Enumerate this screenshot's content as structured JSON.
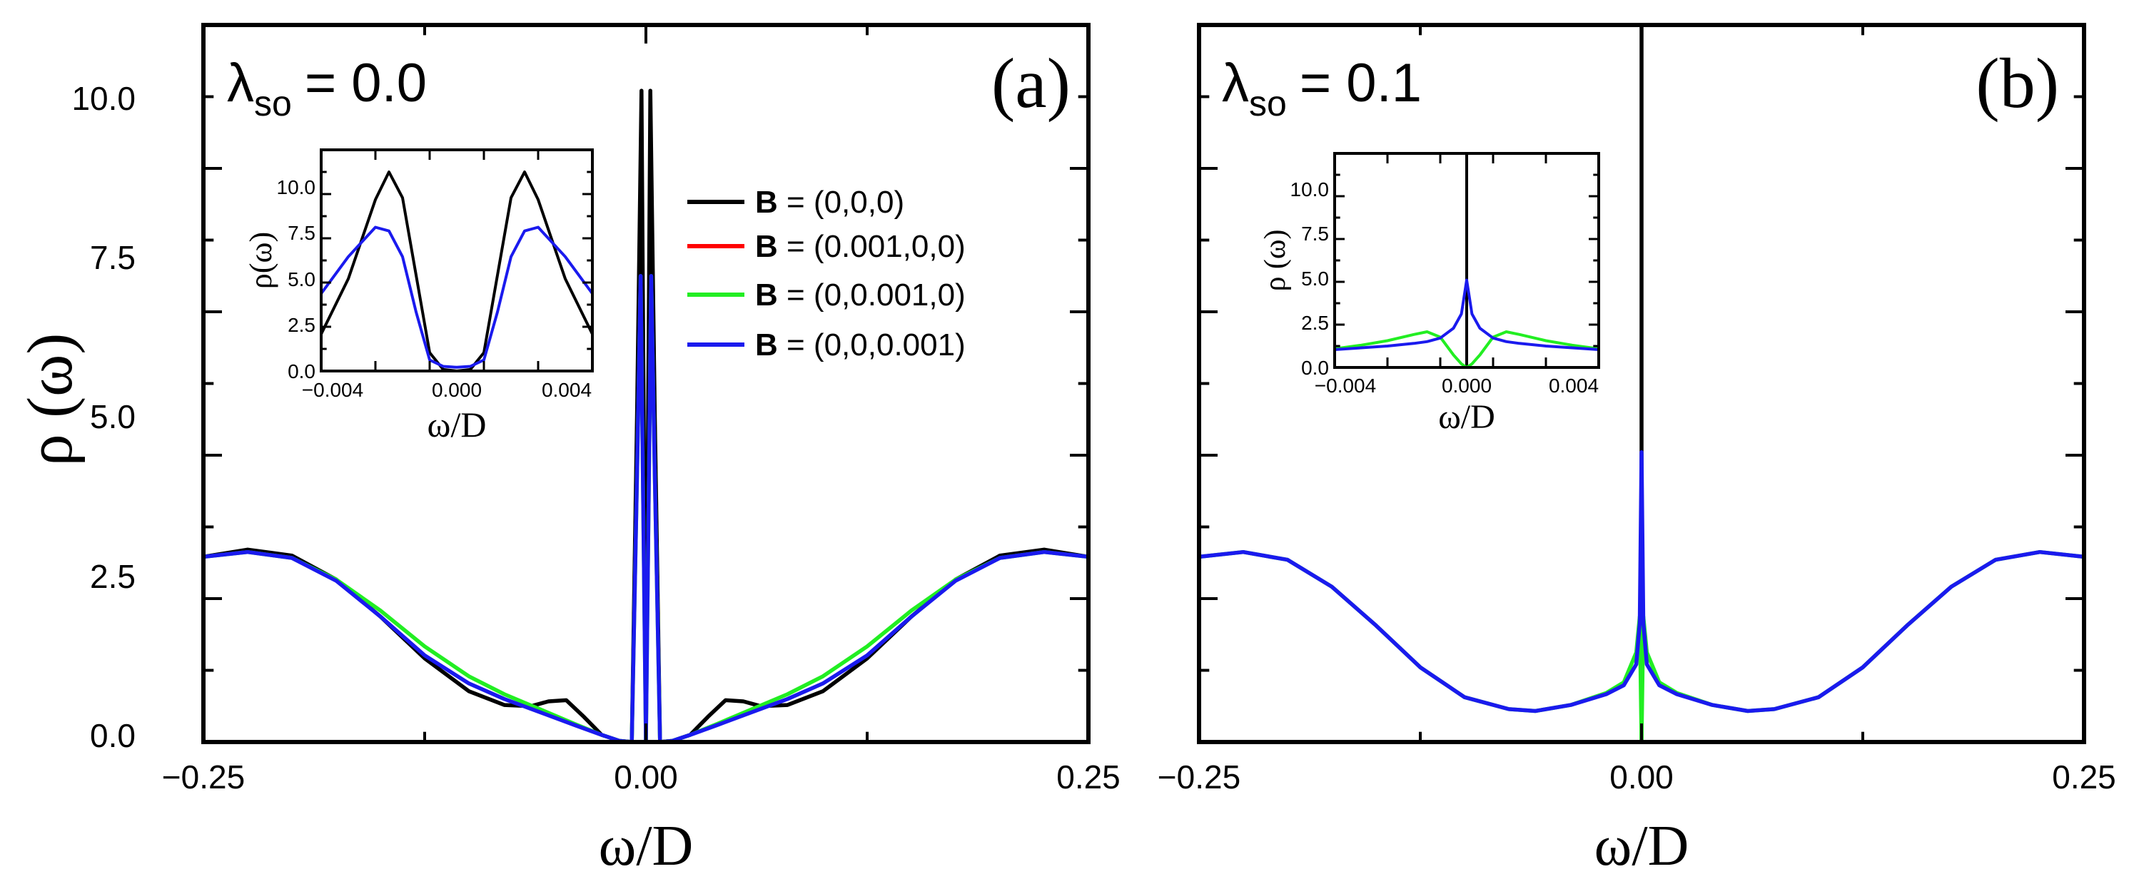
{
  "chart_data": [
    {
      "type": "line",
      "panel_label": "(a)",
      "annotation": {
        "main": "λ",
        "sub": "so",
        "rest": "= 0.0"
      },
      "xlabel": "ω/D",
      "ylabel": "ρ (ω)",
      "xlim": [
        -0.25,
        0.25
      ],
      "ylim": [
        0,
        12
      ],
      "xticks": [
        "−0.25",
        "0.00",
        "0.25"
      ],
      "yticks": [
        "0.0",
        "2.5",
        "5.0",
        "7.5",
        "10.0"
      ],
      "legend": {
        "placement": "top-right",
        "entries": [
          {
            "bold": "B",
            "rest": " = (0,0,0)",
            "color": "#000000"
          },
          {
            "bold": "B",
            "rest": " = (0.001,0,0)",
            "color": "#ff0000"
          },
          {
            "bold": "B",
            "rest": " = (0,0.001,0)",
            "color": "#22ee22"
          },
          {
            "bold": "B",
            "rest": " = (0,0,0.001)",
            "color": "#1a1aee"
          }
        ]
      },
      "series": [
        {
          "color": "#000000",
          "x": [
            -0.25,
            -0.225,
            -0.2,
            -0.175,
            -0.15,
            -0.125,
            -0.1,
            -0.08,
            -0.065,
            -0.055,
            -0.045,
            -0.035,
            -0.025,
            -0.015,
            -0.008,
            -0.005,
            -0.0025,
            0,
            0.0025,
            0.005,
            0.008,
            0.015,
            0.025,
            0.035,
            0.045,
            0.055,
            0.065,
            0.08,
            0.1,
            0.125,
            0.15,
            0.175,
            0.2,
            0.225,
            0.25
          ],
          "y": [
            3.1,
            3.22,
            3.12,
            2.72,
            2.1,
            1.4,
            0.85,
            0.62,
            0.6,
            0.68,
            0.7,
            0.42,
            0.12,
            0.02,
            0.0,
            5.5,
            10.9,
            0.0,
            10.9,
            5.5,
            0.0,
            0.02,
            0.12,
            0.42,
            0.7,
            0.68,
            0.6,
            0.62,
            0.85,
            1.4,
            2.1,
            2.72,
            3.12,
            3.22,
            3.1
          ]
        },
        {
          "color": "#22ee22",
          "x": [
            -0.25,
            -0.225,
            -0.2,
            -0.175,
            -0.15,
            -0.125,
            -0.1,
            -0.08,
            -0.06,
            -0.04,
            -0.025,
            -0.015,
            -0.008,
            -0.005,
            -0.003,
            0,
            0.003,
            0.005,
            0.008,
            0.015,
            0.025,
            0.04,
            0.06,
            0.08,
            0.1,
            0.125,
            0.15,
            0.175,
            0.2,
            0.225,
            0.25
          ],
          "y": [
            3.1,
            3.18,
            3.08,
            2.72,
            2.2,
            1.6,
            1.1,
            0.8,
            0.55,
            0.3,
            0.12,
            0.02,
            0.0,
            4.5,
            7.8,
            0.0,
            7.8,
            4.5,
            0.0,
            0.02,
            0.12,
            0.3,
            0.55,
            0.8,
            1.1,
            1.6,
            2.2,
            2.72,
            3.08,
            3.18,
            3.1
          ]
        },
        {
          "color": "#1a1aee",
          "x": [
            -0.25,
            -0.225,
            -0.2,
            -0.175,
            -0.15,
            -0.125,
            -0.1,
            -0.08,
            -0.06,
            -0.04,
            -0.025,
            -0.015,
            -0.008,
            -0.005,
            -0.003,
            0,
            0.003,
            0.005,
            0.008,
            0.015,
            0.025,
            0.04,
            0.06,
            0.08,
            0.1,
            0.125,
            0.15,
            0.175,
            0.2,
            0.225,
            0.25
          ],
          "y": [
            3.1,
            3.18,
            3.08,
            2.7,
            2.1,
            1.45,
            0.98,
            0.72,
            0.5,
            0.28,
            0.12,
            0.02,
            0.0,
            4.5,
            7.8,
            0.0,
            7.8,
            4.5,
            0.0,
            0.02,
            0.12,
            0.28,
            0.5,
            0.72,
            0.98,
            1.45,
            2.1,
            2.7,
            3.08,
            3.18,
            3.1
          ]
        }
      ],
      "inset": {
        "xlabel": "ω/D",
        "ylabel": "ρ(ω)",
        "xlim": [
          -0.005,
          0.005
        ],
        "ylim": [
          0,
          12
        ],
        "xticks": [
          "−0.004",
          "0.000",
          "0.004"
        ],
        "yticks": [
          "0.0",
          "2.5",
          "5.0",
          "7.5",
          "10.0"
        ],
        "series": [
          {
            "color": "#000000",
            "x": [
              -0.005,
              -0.004,
              -0.003,
              -0.0025,
              -0.002,
              -0.0015,
              -0.001,
              -0.0005,
              0,
              0.0005,
              0.001,
              0.0015,
              0.002,
              0.0025,
              0.003,
              0.004,
              0.005
            ],
            "y": [
              2.0,
              5.0,
              9.3,
              10.8,
              9.4,
              5.2,
              1.0,
              0.08,
              0.0,
              0.08,
              1.0,
              5.2,
              9.4,
              10.8,
              9.3,
              5.0,
              2.0
            ]
          },
          {
            "color": "#1a1aee",
            "x": [
              -0.005,
              -0.004,
              -0.003,
              -0.0025,
              -0.002,
              -0.0015,
              -0.001,
              -0.0005,
              0,
              0.0005,
              0.001,
              0.0015,
              0.002,
              0.0025,
              0.003,
              0.004,
              0.005
            ],
            "y": [
              4.2,
              6.2,
              7.8,
              7.6,
              6.2,
              3.2,
              0.6,
              0.25,
              0.2,
              0.25,
              0.6,
              3.2,
              6.2,
              7.6,
              7.8,
              6.2,
              4.2
            ]
          }
        ]
      }
    },
    {
      "type": "line",
      "panel_label": "(b)",
      "annotation": {
        "main": "λ",
        "sub": "so",
        "rest": "= 0.1"
      },
      "xlabel": "ω/D",
      "xlim": [
        -0.25,
        0.25
      ],
      "ylim": [
        0,
        12
      ],
      "xticks": [
        "−0.25",
        "0.00",
        "0.25"
      ],
      "series": [
        {
          "color": "#000000",
          "x": [
            0,
            0
          ],
          "y": [
            0,
            12
          ]
        },
        {
          "color": "#22ee22",
          "x": [
            -0.25,
            -0.225,
            -0.2,
            -0.175,
            -0.15,
            -0.125,
            -0.1,
            -0.075,
            -0.06,
            -0.04,
            -0.02,
            -0.01,
            -0.003,
            -0.001,
            0,
            0.001,
            0.003,
            0.01,
            0.02,
            0.04,
            0.06,
            0.075,
            0.1,
            0.125,
            0.15,
            0.175,
            0.2,
            0.225,
            0.25
          ],
          "y": [
            3.1,
            3.18,
            3.05,
            2.6,
            1.95,
            1.25,
            0.75,
            0.55,
            0.52,
            0.62,
            0.82,
            1.0,
            1.5,
            2.1,
            0.0,
            2.1,
            1.5,
            1.0,
            0.82,
            0.62,
            0.52,
            0.55,
            0.75,
            1.25,
            1.95,
            2.6,
            3.05,
            3.18,
            3.1
          ]
        },
        {
          "color": "#1a1aee",
          "x": [
            -0.25,
            -0.225,
            -0.2,
            -0.175,
            -0.15,
            -0.125,
            -0.1,
            -0.075,
            -0.06,
            -0.04,
            -0.02,
            -0.01,
            -0.003,
            -0.001,
            0,
            0.001,
            0.003,
            0.01,
            0.02,
            0.04,
            0.06,
            0.075,
            0.1,
            0.125,
            0.15,
            0.175,
            0.2,
            0.225,
            0.25
          ],
          "y": [
            3.1,
            3.18,
            3.05,
            2.6,
            1.95,
            1.25,
            0.75,
            0.55,
            0.52,
            0.62,
            0.8,
            0.95,
            1.3,
            2.0,
            4.85,
            2.0,
            1.3,
            0.95,
            0.8,
            0.62,
            0.52,
            0.55,
            0.75,
            1.25,
            1.95,
            2.6,
            3.05,
            3.18,
            3.1
          ]
        }
      ],
      "inset": {
        "xlabel": "ω/D",
        "ylabel": "ρ (ω)",
        "xlim": [
          -0.005,
          0.005
        ],
        "ylim": [
          0,
          12
        ],
        "xticks": [
          "−0.004",
          "0.000",
          "0.004"
        ],
        "yticks": [
          "0.0",
          "2.5",
          "5.0",
          "7.5",
          "10.0"
        ],
        "series": [
          {
            "color": "#000000",
            "x": [
              0,
              0
            ],
            "y": [
              0,
              12
            ]
          },
          {
            "color": "#22ee22",
            "x": [
              -0.005,
              -0.004,
              -0.003,
              -0.002,
              -0.0015,
              -0.001,
              -0.0005,
              -0.0002,
              0,
              0.0002,
              0.0005,
              0.001,
              0.0015,
              0.002,
              0.003,
              0.004,
              0.005
            ],
            "y": [
              1.05,
              1.25,
              1.5,
              1.85,
              2.0,
              1.7,
              0.7,
              0.2,
              0.0,
              0.2,
              0.7,
              1.7,
              2.0,
              1.85,
              1.5,
              1.25,
              1.05
            ]
          },
          {
            "color": "#1a1aee",
            "x": [
              -0.005,
              -0.004,
              -0.003,
              -0.002,
              -0.0015,
              -0.001,
              -0.0005,
              -0.0002,
              0,
              0.0002,
              0.0005,
              0.001,
              0.0015,
              0.002,
              0.003,
              0.004,
              0.005
            ],
            "y": [
              1.0,
              1.1,
              1.2,
              1.35,
              1.45,
              1.65,
              2.2,
              3.0,
              4.9,
              3.0,
              2.2,
              1.65,
              1.45,
              1.35,
              1.2,
              1.1,
              1.0
            ]
          }
        ]
      }
    }
  ]
}
